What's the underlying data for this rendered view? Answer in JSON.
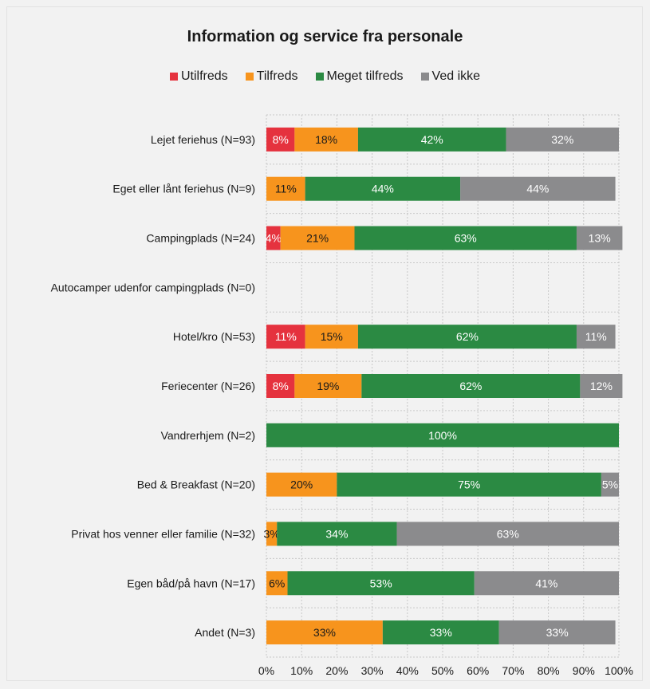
{
  "chart_data": {
    "type": "bar",
    "orientation": "horizontal",
    "stacked": true,
    "title": "Information og service fra personale",
    "categories": [
      "Lejet feriehus (N=93)",
      "Eget eller lånt feriehus (N=9)",
      "Campingplads (N=24)",
      "Autocamper udenfor campingplads (N=0)",
      "Hotel/kro (N=53)",
      "Feriecenter (N=26)",
      "Vandrerhjem (N=2)",
      "Bed & Breakfast (N=20)",
      "Privat hos venner eller familie (N=32)",
      "Egen båd/på havn (N=17)",
      "Andet (N=3)"
    ],
    "series": [
      {
        "name": "Utilfreds",
        "color": "#e5323e",
        "values": [
          8,
          0,
          4,
          0,
          11,
          8,
          0,
          0,
          0,
          0,
          0
        ],
        "labels": [
          "8%",
          "",
          "4%",
          "",
          "11%",
          "8%",
          "",
          "",
          "",
          "",
          ""
        ]
      },
      {
        "name": "Tilfreds",
        "color": "#f7941d",
        "values": [
          18,
          11,
          21,
          0,
          15,
          19,
          0,
          20,
          3,
          6,
          33
        ],
        "labels": [
          "18%",
          "11%",
          "21%",
          "",
          "15%",
          "19%",
          "",
          "20%",
          "3%",
          "6%",
          "33%"
        ]
      },
      {
        "name": "Meget tilfreds",
        "color": "#2b8a43",
        "values": [
          42,
          44,
          63,
          0,
          62,
          62,
          100,
          75,
          34,
          53,
          33
        ],
        "labels": [
          "42%",
          "44%",
          "63%",
          "",
          "62%",
          "62%",
          "100%",
          "75%",
          "34%",
          "53%",
          "33%"
        ]
      },
      {
        "name": "Ved ikke",
        "color": "#8b8b8d",
        "values": [
          32,
          44,
          13,
          0,
          11,
          12,
          0,
          5,
          63,
          41,
          33
        ],
        "labels": [
          "32%",
          "44%",
          "13%",
          "",
          "11%",
          "12%",
          "",
          "5%",
          "63%",
          "41%",
          "33%"
        ]
      }
    ],
    "xlim": [
      0,
      100
    ],
    "xticks": [
      "0%",
      "10%",
      "20%",
      "30%",
      "40%",
      "50%",
      "60%",
      "70%",
      "80%",
      "90%",
      "100%"
    ],
    "grid": true,
    "legend": "top-center"
  }
}
